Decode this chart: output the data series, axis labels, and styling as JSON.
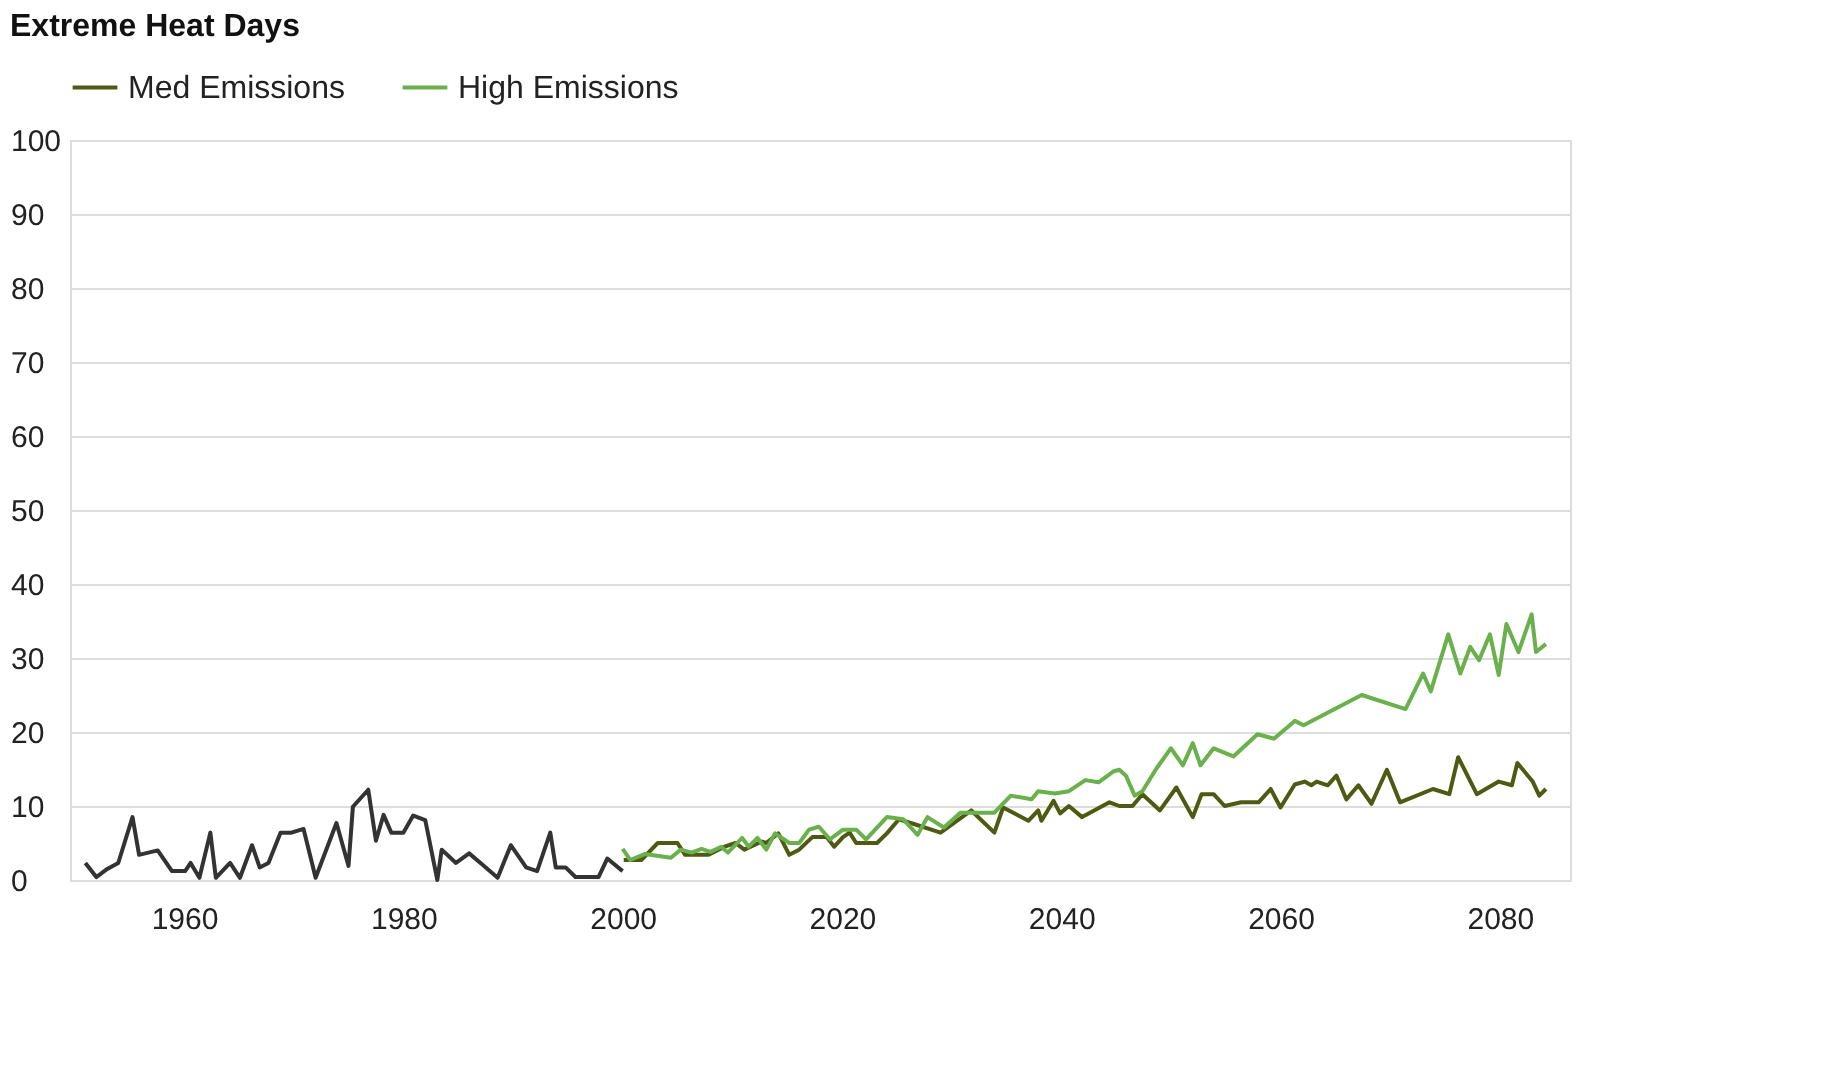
{
  "chart_data": {
    "type": "line",
    "title": "Extreme Heat Days",
    "xlim": [
      1949.6,
      2086.4
    ],
    "xticks": [
      1960,
      1980,
      2000,
      2020,
      2040,
      2060,
      2080
    ],
    "ylim": [
      0,
      100
    ],
    "yticks": [
      0,
      10,
      20,
      30,
      40,
      50,
      60,
      70,
      80,
      90,
      100
    ],
    "grid": "y",
    "legend": "top",
    "line_style": "solid",
    "marker": "none",
    "series": [
      {
        "color": "#333333",
        "x": [
          1951.0,
          1952.0,
          1953.0,
          1954.0,
          1955.3,
          1955.9,
          1957.6,
          1958.9,
          1960.1,
          1960.6,
          1961.4,
          1962.4,
          1962.9,
          1964.2,
          1965.1,
          1966.2,
          1966.9,
          1967.7,
          1968.8,
          1969.8,
          1970.9,
          1972.0,
          1973.9,
          1975.0,
          1975.4,
          1976.8,
          1977.5,
          1978.2,
          1978.9,
          1980.0,
          1980.9,
          1982.0,
          1983.1,
          1983.5,
          1984.8,
          1986.0,
          1987.2,
          1988.6,
          1989.8,
          1991.2,
          1992.2,
          1993.4,
          1993.9,
          1994.8,
          1995.7,
          1997.8,
          1998.6,
          2000.0
        ],
        "values": [
          2.3,
          0.4,
          1.5,
          2.3,
          8.5,
          3.4,
          4.0,
          1.2,
          1.2,
          2.3,
          0.3,
          6.4,
          0.3,
          2.3,
          0.3,
          4.7,
          1.7,
          2.3,
          6.4,
          6.4,
          6.9,
          0.3,
          7.7,
          1.9,
          9.9,
          12.2,
          5.3,
          8.8,
          6.4,
          6.4,
          8.7,
          8.1,
          0,
          4.1,
          2.3,
          3.6,
          2.1,
          0.3,
          4.7,
          1.7,
          1.2,
          6.4,
          1.7,
          1.7,
          0.4,
          0.4,
          2.9,
          1.2
        ]
      },
      {
        "name": "Med Emissions",
        "color": "#4d5a12",
        "x": [
          2000.1,
          2001.7,
          2003.2,
          2005.0,
          2005.7,
          2007.8,
          2009.3,
          2010.3,
          2011.1,
          2012.7,
          2013.1,
          2014.2,
          2015.2,
          2016.1,
          2017.3,
          2018.6,
          2019.3,
          2020.1,
          2020.7,
          2021.3,
          2023.2,
          2024.1,
          2025.2,
          2026.5,
          2029.0,
          2031.8,
          2033.9,
          2034.7,
          2037.0,
          2037.9,
          2038.2,
          2039.3,
          2039.9,
          2040.7,
          2041.9,
          2044.4,
          2045.3,
          2046.5,
          2047.4,
          2049.0,
          2050.5,
          2052.0,
          2052.8,
          2053.9,
          2054.9,
          2056.4,
          2058.0,
          2059.1,
          2060.0,
          2061.3,
          2062.2,
          2062.8,
          2063.3,
          2064.3,
          2065.1,
          2066.0,
          2067.1,
          2068.3,
          2069.7,
          2070.9,
          2073.9,
          2075.4,
          2076.2,
          2077.9,
          2079.9,
          2081.1,
          2081.6,
          2083.0,
          2083.6,
          2084.2
        ],
        "values": [
          2.7,
          2.7,
          5.0,
          5.0,
          3.4,
          3.4,
          4.5,
          5.0,
          4.1,
          5.2,
          5.0,
          6.3,
          3.4,
          4.1,
          5.8,
          5.8,
          4.5,
          5.8,
          6.4,
          5.0,
          5.0,
          6.3,
          8.2,
          7.6,
          6.4,
          9.4,
          6.4,
          9.8,
          8.0,
          9.4,
          8.0,
          10.7,
          9.0,
          10.0,
          8.5,
          10.5,
          10.0,
          10.0,
          11.6,
          9.4,
          12.5,
          8.5,
          11.6,
          11.6,
          10.0,
          10.5,
          10.5,
          12.3,
          9.8,
          12.9,
          13.3,
          12.8,
          13.3,
          12.8,
          14.1,
          10.9,
          12.8,
          10.3,
          14.9,
          10.5,
          12.3,
          11.6,
          16.6,
          11.6,
          13.3,
          12.8,
          15.8,
          13.3,
          11.4,
          12.3
        ]
      },
      {
        "name": "High Emissions",
        "color": "#6ab04c",
        "x": [
          2000.0,
          2000.7,
          2002.0,
          2004.4,
          2005.3,
          2006.3,
          2007.2,
          2008.0,
          2009.0,
          2009.6,
          2010.9,
          2011.5,
          2012.3,
          2013.1,
          2013.9,
          2015.2,
          2016.1,
          2017.0,
          2017.9,
          2018.9,
          2020.1,
          2021.3,
          2022.2,
          2024.1,
          2025.6,
          2026.9,
          2027.8,
          2029.3,
          2030.8,
          2033.3,
          2033.9,
          2035.4,
          2037.3,
          2037.9,
          2039.4,
          2040.7,
          2042.2,
          2043.4,
          2044.8,
          2045.3,
          2045.9,
          2046.7,
          2047.4,
          2048.7,
          2050.0,
          2051.1,
          2052.0,
          2052.7,
          2053.9,
          2055.7,
          2057.9,
          2059.4,
          2061.3,
          2062.1,
          2067.4,
          2071.4,
          2073.0,
          2073.7,
          2075.3,
          2076.4,
          2077.3,
          2078.1,
          2079.1,
          2079.9,
          2080.6,
          2081.7,
          2082.9,
          2083.3,
          2084.2
        ],
        "values": [
          4.2,
          2.7,
          3.5,
          3.0,
          4.1,
          3.7,
          4.2,
          3.8,
          4.5,
          3.7,
          5.7,
          4.5,
          5.7,
          4.1,
          6.3,
          5.0,
          5.0,
          6.8,
          7.2,
          5.5,
          6.8,
          6.8,
          5.5,
          8.5,
          8.2,
          6.1,
          8.5,
          7.1,
          9.1,
          9.1,
          9.1,
          11.4,
          10.9,
          12.0,
          11.7,
          12.0,
          13.5,
          13.2,
          14.7,
          14.9,
          14.1,
          11.4,
          12.0,
          15.1,
          17.8,
          15.5,
          18.5,
          15.5,
          17.8,
          16.7,
          19.7,
          19.1,
          21.5,
          20.9,
          25.0,
          23.1,
          27.9,
          25.5,
          33.2,
          27.9,
          31.5,
          29.7,
          33.2,
          27.7,
          34.6,
          30.8,
          35.9,
          30.8,
          31.9
        ]
      }
    ]
  }
}
